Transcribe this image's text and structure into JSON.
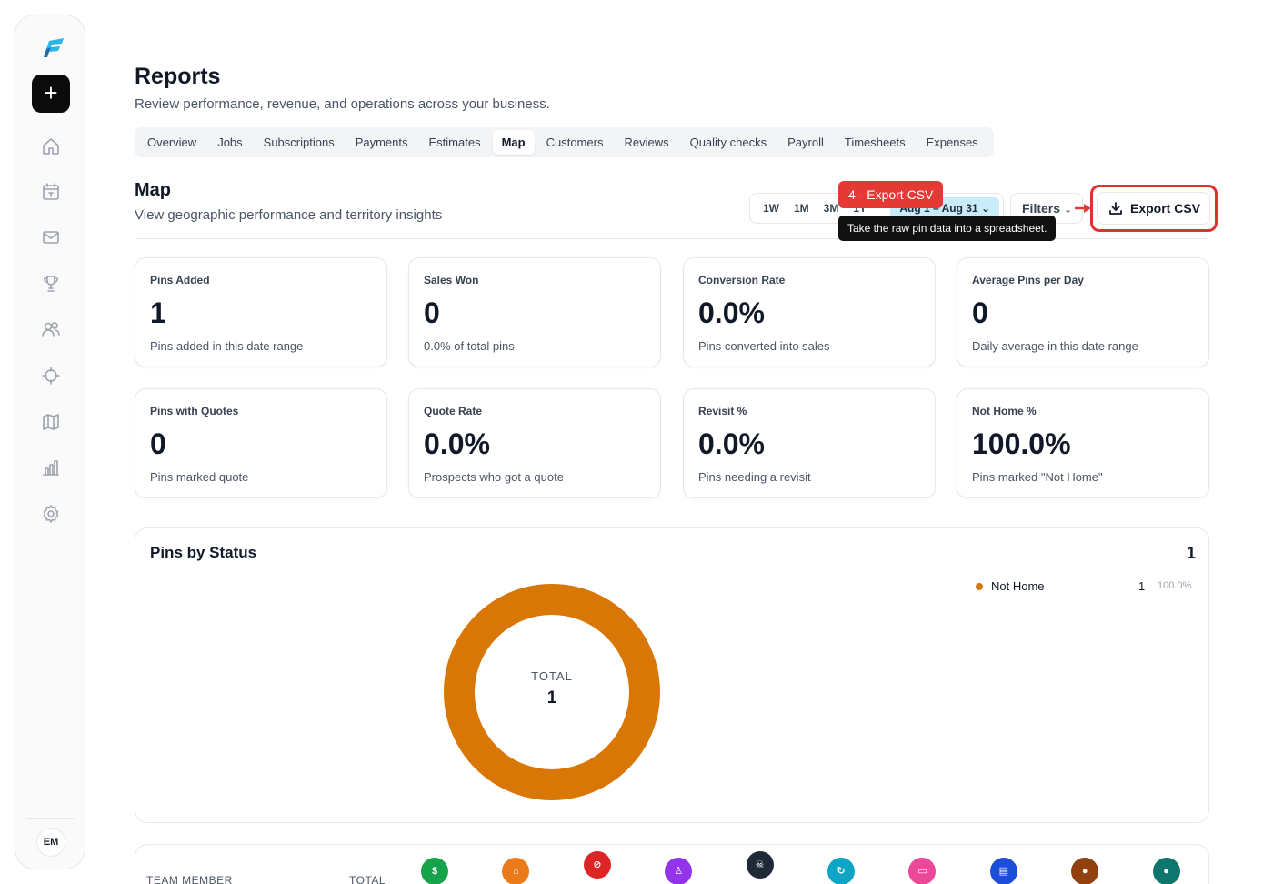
{
  "sidebar": {
    "avatar_initials": "EM",
    "add_label": "+",
    "icons": [
      "home-icon",
      "calendar-icon",
      "mail-icon",
      "trophy-icon",
      "users-icon",
      "crosshair-icon",
      "map-icon",
      "bar-chart-icon",
      "gear-icon"
    ],
    "brand_colors": {
      "logo": "#2bb5e8",
      "logo_dark": "#1c6fb5"
    }
  },
  "header": {
    "title": "Reports",
    "subtitle": "Review performance, revenue, and operations across your business."
  },
  "tabs": [
    {
      "label": "Overview"
    },
    {
      "label": "Jobs"
    },
    {
      "label": "Subscriptions"
    },
    {
      "label": "Payments"
    },
    {
      "label": "Estimates"
    },
    {
      "label": "Map",
      "active": true
    },
    {
      "label": "Customers"
    },
    {
      "label": "Reviews"
    },
    {
      "label": "Quality checks"
    },
    {
      "label": "Payroll"
    },
    {
      "label": "Timesheets"
    },
    {
      "label": "Expenses"
    }
  ],
  "section": {
    "title": "Map",
    "subtitle": "View geographic performance and territory insights"
  },
  "controls": {
    "ranges": [
      "1W",
      "1M",
      "3M",
      "1Y"
    ],
    "date_range": "Aug 1 – Aug 31",
    "filters_label": "Filters",
    "export_label": "Export CSV",
    "step_badge": "4 - Export CSV",
    "tooltip": "Take the raw pin data into a spreadsheet.",
    "highlight_color": "#e03131"
  },
  "metrics": [
    {
      "label": "Pins Added",
      "value": "1",
      "note": "Pins added in this date range"
    },
    {
      "label": "Sales Won",
      "value": "0",
      "note": "0.0% of total pins"
    },
    {
      "label": "Conversion Rate",
      "value": "0.0%",
      "note": "Pins converted into sales"
    },
    {
      "label": "Average Pins per Day",
      "value": "0",
      "note": "Daily average in this date range"
    },
    {
      "label": "Pins with Quotes",
      "value": "0",
      "note": "Pins marked quote"
    },
    {
      "label": "Quote Rate",
      "value": "0.0%",
      "note": "Prospects who got a quote"
    },
    {
      "label": "Revisit %",
      "value": "0.0%",
      "note": "Pins needing a revisit"
    },
    {
      "label": "Not Home %",
      "value": "100.0%",
      "note": "Pins marked \"Not Home\""
    }
  ],
  "pins_by_status": {
    "title": "Pins by Status",
    "total": "1",
    "center_label": "TOTAL",
    "center_value": "1",
    "legend": [
      {
        "name": "Not Home",
        "count": "1",
        "pct": "100.0%",
        "color": "#d97706"
      }
    ],
    "donut_fraction": 1.0
  },
  "team_table": {
    "col_member": "TEAM MEMBER",
    "col_total": "TOTAL",
    "status_icons": [
      {
        "name": "dollar-icon",
        "glyph": "$",
        "color": "#16a34a"
      },
      {
        "name": "house-icon",
        "glyph": "⌂",
        "color": "#ea7a1a"
      },
      {
        "name": "block-icon",
        "glyph": "⊘",
        "color": "#dc2626"
      },
      {
        "name": "person-icon",
        "glyph": "♙",
        "color": "#9333ea"
      },
      {
        "name": "skull-icon",
        "glyph": "☠",
        "color": "#1f2937"
      },
      {
        "name": "refresh-icon",
        "glyph": "↻",
        "color": "#0ea5c6"
      },
      {
        "name": "ticket-icon",
        "glyph": "▭",
        "color": "#ec4899"
      },
      {
        "name": "document-icon",
        "glyph": "▤",
        "color": "#1d4ed8"
      },
      {
        "name": "dot-brown-icon",
        "glyph": "●",
        "color": "#92400e"
      },
      {
        "name": "dot-teal-icon",
        "glyph": "●",
        "color": "#0f766e"
      }
    ]
  }
}
